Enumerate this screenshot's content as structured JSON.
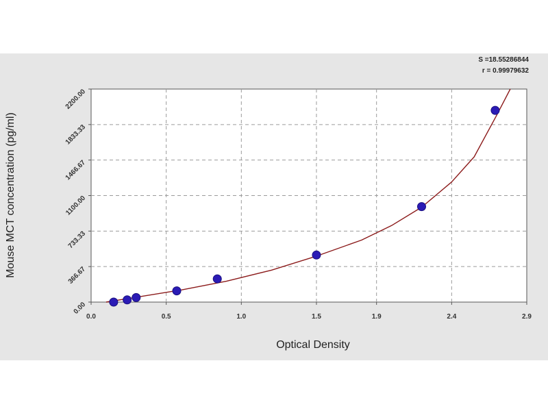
{
  "chart_data": {
    "type": "scatter",
    "xlabel": "Optical Density",
    "ylabel": "Mouse MCT concentration (pg/ml)",
    "xlim": [
      0.0,
      2.9
    ],
    "ylim": [
      0.0,
      2200.0
    ],
    "x_ticks": [
      0.0,
      0.5,
      1.0,
      1.5,
      1.9,
      2.4,
      2.9
    ],
    "x_tick_labels": [
      "0.0",
      "0.5",
      "1.0",
      "1.5",
      "1.9",
      "2.4",
      "2.9"
    ],
    "y_ticks": [
      0.0,
      366.67,
      733.33,
      1100.0,
      1466.67,
      1833.33,
      2200.0
    ],
    "y_tick_labels": [
      "0.00",
      "366.67",
      "733.33",
      "1100.00",
      "1466.67",
      "1833.33",
      "2200.00"
    ],
    "grid": true,
    "series": [
      {
        "type": "scatter",
        "color": "#2b1bb5",
        "points": [
          {
            "x": 0.15,
            "y": 0
          },
          {
            "x": 0.24,
            "y": 23
          },
          {
            "x": 0.3,
            "y": 47
          },
          {
            "x": 0.57,
            "y": 116
          },
          {
            "x": 0.84,
            "y": 240
          },
          {
            "x": 1.5,
            "y": 486
          },
          {
            "x": 2.2,
            "y": 986
          },
          {
            "x": 2.69,
            "y": 1980
          }
        ]
      },
      {
        "type": "line",
        "color": "#8b1a1a",
        "points": [
          {
            "x": 0.1,
            "y": -15
          },
          {
            "x": 0.3,
            "y": 50
          },
          {
            "x": 0.6,
            "y": 125
          },
          {
            "x": 0.9,
            "y": 215
          },
          {
            "x": 1.2,
            "y": 330
          },
          {
            "x": 1.5,
            "y": 475
          },
          {
            "x": 1.8,
            "y": 640
          },
          {
            "x": 2.0,
            "y": 790
          },
          {
            "x": 2.2,
            "y": 980
          },
          {
            "x": 2.4,
            "y": 1240
          },
          {
            "x": 2.55,
            "y": 1500
          },
          {
            "x": 2.7,
            "y": 1930
          },
          {
            "x": 2.79,
            "y": 2200
          }
        ]
      }
    ],
    "annotations": {
      "s_line": "S =18.55286844",
      "r_line": "r = 0.99979632"
    }
  }
}
